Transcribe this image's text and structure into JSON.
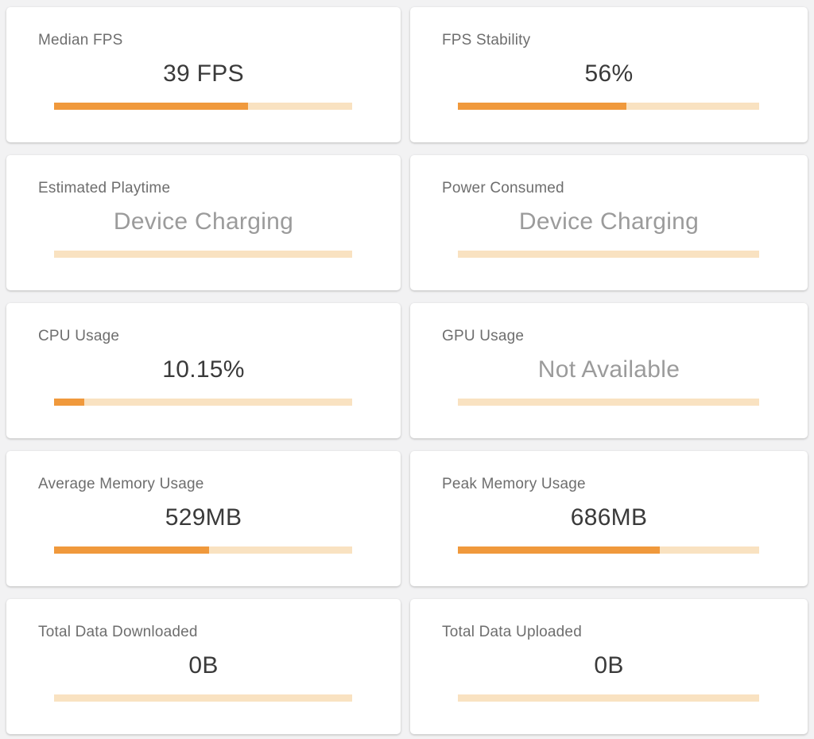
{
  "colors": {
    "page_background": "#f2f2f3",
    "card_background": "#ffffff",
    "bar_fill": "#f0993c",
    "bar_track": "#f9e2c1",
    "title_text": "#6e6e6e",
    "value_text": "#3a3a3a",
    "muted_value_text": "#9b9b9b"
  },
  "cards": [
    {
      "title": "Median FPS",
      "value": "39 FPS",
      "muted": false,
      "progress_percent": 65
    },
    {
      "title": "FPS Stability",
      "value": "56%",
      "muted": false,
      "progress_percent": 56
    },
    {
      "title": "Estimated Playtime",
      "value": "Device Charging",
      "muted": true,
      "progress_percent": 0
    },
    {
      "title": "Power Consumed",
      "value": "Device Charging",
      "muted": true,
      "progress_percent": 0
    },
    {
      "title": "CPU Usage",
      "value": "10.15%",
      "muted": false,
      "progress_percent": 10
    },
    {
      "title": "GPU Usage",
      "value": "Not Available",
      "muted": true,
      "progress_percent": 0
    },
    {
      "title": "Average Memory Usage",
      "value": "529MB",
      "muted": false,
      "progress_percent": 52
    },
    {
      "title": "Peak Memory Usage",
      "value": "686MB",
      "muted": false,
      "progress_percent": 67
    },
    {
      "title": "Total Data Downloaded",
      "value": "0B",
      "muted": false,
      "progress_percent": 0
    },
    {
      "title": "Total Data Uploaded",
      "value": "0B",
      "muted": false,
      "progress_percent": 0
    }
  ]
}
